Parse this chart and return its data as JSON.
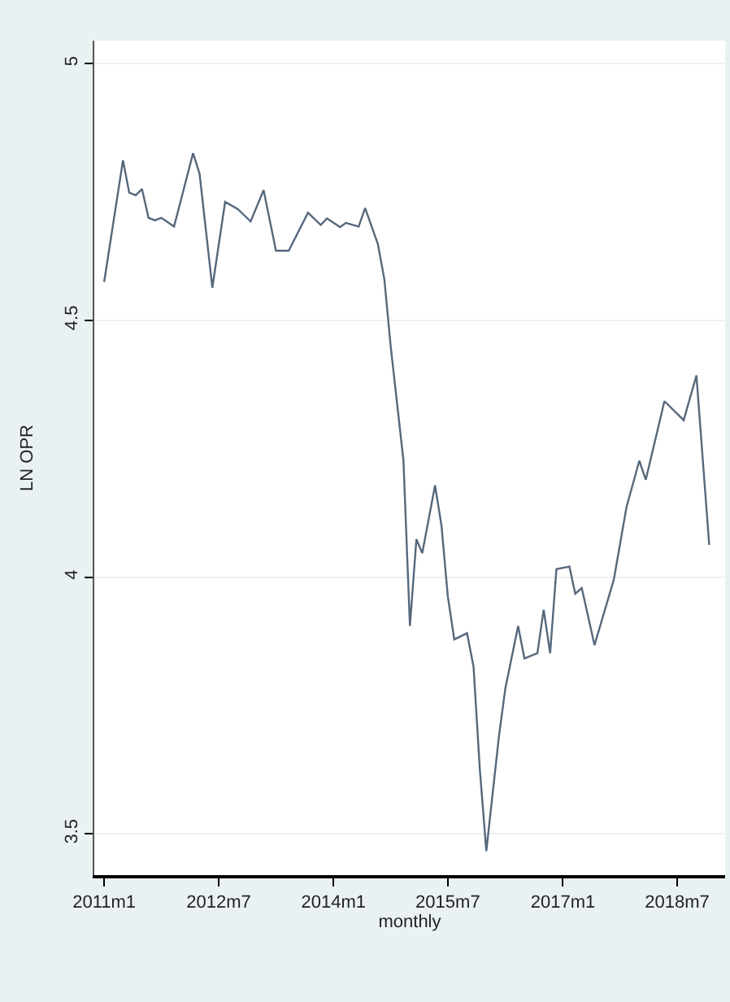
{
  "chart_data": {
    "type": "line",
    "xlabel": "monthly",
    "ylabel": "LN OPR",
    "x": [
      "2011-01",
      "2011-04",
      "2011-05",
      "2011-06",
      "2011-07",
      "2011-08",
      "2011-09",
      "2011-10",
      "2011-12",
      "2012-03",
      "2012-04",
      "2012-06",
      "2012-08",
      "2012-10",
      "2012-12",
      "2013-02",
      "2013-04",
      "2013-06",
      "2013-09",
      "2013-11",
      "2013-12",
      "2014-02",
      "2014-03",
      "2014-05",
      "2014-06",
      "2014-08",
      "2014-09",
      "2014-10",
      "2014-12",
      "2015-01",
      "2015-02",
      "2015-03",
      "2015-05",
      "2015-06",
      "2015-07",
      "2015-08",
      "2015-10",
      "2015-11",
      "2015-12",
      "2016-01",
      "2016-03",
      "2016-04",
      "2016-06",
      "2016-07",
      "2016-09",
      "2016-10",
      "2016-11",
      "2016-12",
      "2017-02",
      "2017-03",
      "2017-04",
      "2017-06",
      "2017-09",
      "2017-11",
      "2018-01",
      "2018-02",
      "2018-05",
      "2018-08",
      "2018-10",
      "2018-12"
    ],
    "series": [
      {
        "color": "#56687c",
        "values": [
          4.575,
          4.812,
          4.749,
          4.744,
          4.756,
          4.7,
          4.695,
          4.7,
          4.683,
          4.826,
          4.786,
          4.564,
          4.731,
          4.717,
          4.693,
          4.754,
          4.636,
          4.636,
          4.71,
          4.686,
          4.699,
          4.682,
          4.69,
          4.683,
          4.719,
          4.649,
          4.58,
          4.45,
          4.228,
          3.905,
          4.074,
          4.047,
          4.179,
          4.1,
          3.963,
          3.879,
          3.891,
          3.826,
          3.626,
          3.467,
          3.689,
          3.784,
          3.905,
          3.842,
          3.852,
          3.937,
          3.852,
          4.016,
          4.021,
          3.968,
          3.979,
          3.868,
          3.995,
          4.137,
          4.227,
          4.19,
          4.343,
          4.306,
          4.393,
          4.063
        ]
      }
    ],
    "xlim": [
      "2010-11-15",
      "2019-02-15"
    ],
    "xticks": [
      {
        "value": "2011-01",
        "label": "2011m1"
      },
      {
        "value": "2012-07",
        "label": "2012m7"
      },
      {
        "value": "2014-01",
        "label": "2014m1"
      },
      {
        "value": "2015-07",
        "label": "2015m7"
      },
      {
        "value": "2017-01",
        "label": "2017m1"
      },
      {
        "value": "2018-07",
        "label": "2018m7"
      }
    ],
    "ylim": [
      3.42,
      5.045
    ],
    "yticks": [
      3.5,
      4,
      4.5,
      5
    ],
    "grid": "y",
    "line_style": "solid",
    "marker": "none"
  }
}
